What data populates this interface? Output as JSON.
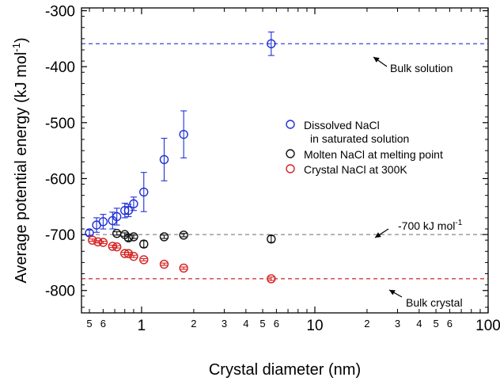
{
  "chart_data": {
    "type": "scatter",
    "xlabel": "Crystal diameter (nm)",
    "ylabel": "Average potential energy (kJ mol",
    "ylabel_sup": "-1",
    "ylabel_close": ")",
    "xscale": "log",
    "xlim": [
      0.45,
      100
    ],
    "ylim": [
      -840,
      -295
    ],
    "yticks": [
      -300,
      -400,
      -500,
      -600,
      -700,
      -800
    ],
    "yticklabels": [
      "-300",
      "-400",
      "-500",
      "-600",
      "-700",
      "-800"
    ],
    "xticks_major": [
      1,
      10,
      100
    ],
    "xticklabels_major": [
      "1",
      "10",
      "100"
    ],
    "xticks_minor": [
      {
        "v": 0.5,
        "label": "5"
      },
      {
        "v": 0.6,
        "label": "6"
      },
      {
        "v": 0.7,
        "label": ""
      },
      {
        "v": 0.8,
        "label": ""
      },
      {
        "v": 0.9,
        "label": ""
      },
      {
        "v": 2,
        "label": "2"
      },
      {
        "v": 3,
        "label": "3"
      },
      {
        "v": 4,
        "label": "4"
      },
      {
        "v": 5,
        "label": "5"
      },
      {
        "v": 6,
        "label": "6"
      },
      {
        "v": 7,
        "label": ""
      },
      {
        "v": 8,
        "label": ""
      },
      {
        "v": 9,
        "label": ""
      },
      {
        "v": 20,
        "label": "2"
      },
      {
        "v": 30,
        "label": "3"
      },
      {
        "v": 40,
        "label": "4"
      },
      {
        "v": 50,
        "label": "5"
      },
      {
        "v": 60,
        "label": "6"
      },
      {
        "v": 70,
        "label": ""
      },
      {
        "v": 80,
        "label": ""
      },
      {
        "v": 90,
        "label": ""
      }
    ],
    "series": [
      {
        "name": "Dissolved NaCl",
        "name_line2": "in saturated solution",
        "color": "#1f2fd6",
        "points": [
          {
            "x": 0.5,
            "y": -697,
            "err": 5
          },
          {
            "x": 0.55,
            "y": -683,
            "err": 13
          },
          {
            "x": 0.6,
            "y": -677,
            "err": 13
          },
          {
            "x": 0.68,
            "y": -675,
            "err": 15
          },
          {
            "x": 0.72,
            "y": -668,
            "err": 15
          },
          {
            "x": 0.8,
            "y": -657,
            "err": 13
          },
          {
            "x": 0.84,
            "y": -657,
            "err": 11
          },
          {
            "x": 0.9,
            "y": -645,
            "err": 12
          },
          {
            "x": 1.03,
            "y": -624,
            "err": 35
          },
          {
            "x": 1.35,
            "y": -566,
            "err": 38
          },
          {
            "x": 1.75,
            "y": -521,
            "err": 42
          },
          {
            "x": 5.6,
            "y": -359,
            "err": 21
          }
        ]
      },
      {
        "name": "Molten NaCl at melting point",
        "color": "#111111",
        "points": [
          {
            "x": 0.72,
            "y": -698,
            "err": 3
          },
          {
            "x": 0.8,
            "y": -700,
            "err": 3
          },
          {
            "x": 0.84,
            "y": -706,
            "err": 5
          },
          {
            "x": 0.9,
            "y": -704,
            "err": 3
          },
          {
            "x": 1.03,
            "y": -717,
            "err": 6
          },
          {
            "x": 1.35,
            "y": -704,
            "err": 3
          },
          {
            "x": 1.75,
            "y": -701,
            "err": 3
          },
          {
            "x": 5.6,
            "y": -708,
            "err": 6
          }
        ]
      },
      {
        "name": "Crystal NaCl at 300K",
        "color": "#d42020",
        "points": [
          {
            "x": 0.52,
            "y": -710,
            "err": 2
          },
          {
            "x": 0.56,
            "y": -713,
            "err": 2
          },
          {
            "x": 0.6,
            "y": -714,
            "err": 2
          },
          {
            "x": 0.68,
            "y": -721,
            "err": 2
          },
          {
            "x": 0.72,
            "y": -722,
            "err": 2
          },
          {
            "x": 0.8,
            "y": -734,
            "err": 2
          },
          {
            "x": 0.84,
            "y": -734,
            "err": 2
          },
          {
            "x": 0.9,
            "y": -739,
            "err": 2
          },
          {
            "x": 1.03,
            "y": -745,
            "err": 2
          },
          {
            "x": 1.35,
            "y": -753,
            "err": 2
          },
          {
            "x": 1.75,
            "y": -760,
            "err": 2
          },
          {
            "x": 5.6,
            "y": -779,
            "err": 3
          }
        ]
      }
    ],
    "reference_lines": [
      {
        "y": -359,
        "color": "#1f2fd6",
        "label": "Bulk solution"
      },
      {
        "y": -700,
        "color": "#888888",
        "label": "-700 kJ mol",
        "label_sup": "-1"
      },
      {
        "y": -779,
        "color": "#d42020",
        "label": "Bulk crystal"
      }
    ],
    "legend_position": "right"
  }
}
